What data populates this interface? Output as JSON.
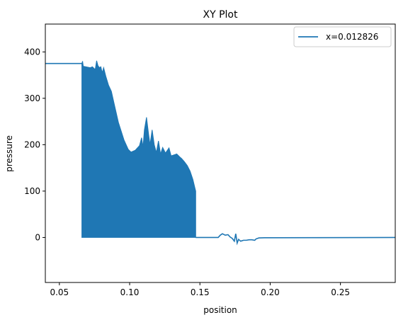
{
  "chart_data": {
    "type": "line",
    "title": "XY Plot",
    "xlabel": "position",
    "ylabel": "pressure",
    "xlim": [
      0.04,
      0.289
    ],
    "ylim": [
      -97,
      460
    ],
    "xticks": [
      {
        "value": 0.05,
        "label": "0.05"
      },
      {
        "value": 0.1,
        "label": "0.10"
      },
      {
        "value": 0.15,
        "label": "0.15"
      },
      {
        "value": 0.2,
        "label": "0.20"
      },
      {
        "value": 0.25,
        "label": "0.25"
      }
    ],
    "yticks": [
      {
        "value": 0,
        "label": "0"
      },
      {
        "value": 100,
        "label": "100"
      },
      {
        "value": 200,
        "label": "200"
      },
      {
        "value": 300,
        "label": "300"
      },
      {
        "value": 400,
        "label": "400"
      }
    ],
    "grid": false,
    "legend_position": "top-right",
    "colors": {
      "series": "#1f77b4"
    },
    "series": [
      {
        "name": "x=0.012826",
        "upstream_plateau": [
          [
            0.04,
            375
          ],
          [
            0.066,
            375
          ]
        ],
        "oscillation_envelope": [
          [
            0.066,
            375
          ],
          [
            0.0665,
            380
          ],
          [
            0.067,
            369
          ],
          [
            0.072,
            366
          ],
          [
            0.0735,
            368
          ],
          [
            0.0755,
            362
          ],
          [
            0.0765,
            381
          ],
          [
            0.0775,
            370
          ],
          [
            0.0785,
            366
          ],
          [
            0.0795,
            368
          ],
          [
            0.0805,
            355
          ],
          [
            0.0815,
            366
          ],
          [
            0.083,
            348
          ],
          [
            0.085,
            328
          ],
          [
            0.087,
            315
          ],
          [
            0.089,
            288
          ],
          [
            0.092,
            248
          ],
          [
            0.096,
            210
          ],
          [
            0.099,
            190
          ],
          [
            0.101,
            184
          ],
          [
            0.104,
            188
          ],
          [
            0.107,
            198
          ],
          [
            0.1085,
            215
          ],
          [
            0.1095,
            195
          ],
          [
            0.1105,
            232
          ],
          [
            0.112,
            259
          ],
          [
            0.1135,
            222
          ],
          [
            0.1145,
            200
          ],
          [
            0.116,
            232
          ],
          [
            0.1175,
            200
          ],
          [
            0.119,
            183
          ],
          [
            0.1205,
            208
          ],
          [
            0.122,
            180
          ],
          [
            0.1235,
            194
          ],
          [
            0.1255,
            182
          ],
          [
            0.128,
            193
          ],
          [
            0.1295,
            176
          ],
          [
            0.1315,
            178
          ],
          [
            0.1335,
            180
          ],
          [
            0.1355,
            174
          ],
          [
            0.137,
            170
          ],
          [
            0.139,
            163
          ],
          [
            0.141,
            155
          ],
          [
            0.143,
            143
          ],
          [
            0.145,
            125
          ],
          [
            0.1465,
            106
          ],
          [
            0.147,
            100
          ]
        ],
        "oscillation_floor": 0,
        "downstream": [
          [
            0.147,
            0
          ],
          [
            0.163,
            0
          ],
          [
            0.1645,
            5
          ],
          [
            0.166,
            8
          ],
          [
            0.168,
            5
          ],
          [
            0.17,
            6
          ],
          [
            0.1715,
            1
          ],
          [
            0.173,
            -2
          ],
          [
            0.1745,
            -8
          ],
          [
            0.1755,
            8
          ],
          [
            0.1765,
            -12
          ],
          [
            0.1775,
            -4
          ],
          [
            0.179,
            -8
          ],
          [
            0.181,
            -6
          ],
          [
            0.183,
            -6
          ],
          [
            0.185,
            -5
          ],
          [
            0.187,
            -5
          ],
          [
            0.189,
            -6
          ],
          [
            0.19,
            -3
          ],
          [
            0.192,
            -1
          ],
          [
            0.196,
            -0.5
          ],
          [
            0.2,
            -0.5
          ],
          [
            0.289,
            0
          ]
        ]
      }
    ]
  }
}
